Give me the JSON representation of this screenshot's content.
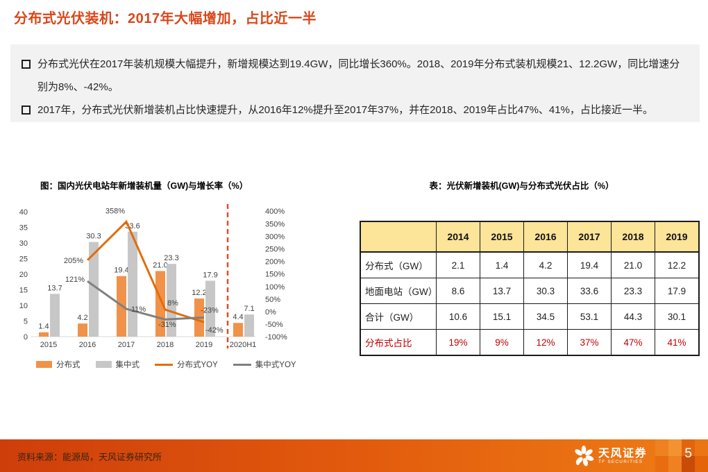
{
  "page": {
    "title": "分布式光伏装机：2017年大幅增加，占比近一半"
  },
  "bullets": [
    "分布式光伏在2017年装机规模大幅提升，新增规模达到19.4GW，同比增长360%。2018、2019年分布式装机规模21、12.2GW，同比增速分别为8%、-42%。",
    "2017年，分布式光伏新增装机占比快速提升，从2016年12%提升至2017年37%，并在2018、2019年占比47%、41%，占比接近一半。"
  ],
  "chart_data": {
    "type": "bar+line",
    "title": "图：国内光伏电站年新增装机量（GW)与增长率（%）",
    "categories": [
      "2015",
      "2016",
      "2017",
      "2018",
      "2019",
      "2020H1"
    ],
    "bar_series": [
      {
        "name": "分布式",
        "color": "#F09249",
        "values": [
          1.4,
          4.2,
          19.4,
          21.0,
          12.2,
          4.4
        ],
        "labels": [
          "1.4",
          "4.2",
          "19.4",
          "21.0",
          "12.2",
          "4.4"
        ]
      },
      {
        "name": "集中式",
        "color": "#C7C7C7",
        "values": [
          13.7,
          30.3,
          33.6,
          23.3,
          17.9,
          7.1
        ],
        "labels": [
          "13.7",
          "30.3",
          "33.6",
          "23.3",
          "17.9",
          "7.1"
        ]
      }
    ],
    "line_series": [
      {
        "name": "分布式YOY",
        "color": "#E36C09",
        "categories": [
          "2016",
          "2017",
          "2018",
          "2019"
        ],
        "values_pct": [
          205,
          358,
          8,
          -42
        ],
        "labels": [
          "205%",
          "358%",
          "8%",
          "-42%"
        ]
      },
      {
        "name": "集中式YOY",
        "color": "#808080",
        "categories": [
          "2016",
          "2017",
          "2018",
          "2019"
        ],
        "values_pct": [
          121,
          11,
          -31,
          -23
        ],
        "labels": [
          "121%",
          "11%",
          "-31%",
          "-23%"
        ]
      }
    ],
    "left_axis": {
      "unit": "GW",
      "min": 0,
      "max": 40,
      "ticks": [
        0,
        5,
        10,
        15,
        20,
        25,
        30,
        35,
        40
      ]
    },
    "right_axis": {
      "unit": "%",
      "min": -100,
      "max": 400,
      "ticks": [
        "400%",
        "350%",
        "300%",
        "250%",
        "200%",
        "150%",
        "100%",
        "50%",
        "0%",
        "-50%",
        "-100%"
      ]
    },
    "divider": {
      "between": [
        "2019",
        "2020H1"
      ],
      "style": "dashed",
      "color": "#E04A26"
    },
    "legend": [
      "分布式",
      "集中式",
      "分布式YOY",
      "集中式YOY"
    ],
    "legend_position": "bottom",
    "grid": "off"
  },
  "table": {
    "title": "表：光伏新增装机(GW)与分布式光伏占比（%）",
    "columns": [
      "",
      "2014",
      "2015",
      "2016",
      "2017",
      "2018",
      "2019"
    ],
    "rows": [
      {
        "label": "分布式（GW）",
        "values": [
          "2.1",
          "1.4",
          "4.2",
          "19.4",
          "21.0",
          "12.2"
        ],
        "highlight": false
      },
      {
        "label": "地面电站（GW）",
        "values": [
          "8.6",
          "13.7",
          "30.3",
          "33.6",
          "23.3",
          "17.9"
        ],
        "highlight": false
      },
      {
        "label": "合计（GW）",
        "values": [
          "10.6",
          "15.1",
          "34.5",
          "53.1",
          "44.3",
          "30.1"
        ],
        "highlight": false
      },
      {
        "label": "分布式占比",
        "values": [
          "19%",
          "9%",
          "12%",
          "37%",
          "47%",
          "41%"
        ],
        "highlight": true
      }
    ],
    "header_bg": "#FCE499",
    "highlight_color": "#C00000"
  },
  "footer": {
    "source": "资料来源：能源局，天风证券研究所",
    "brand": "天风证券",
    "brand_sub": "TF SECURITIES",
    "page_number": "5"
  }
}
